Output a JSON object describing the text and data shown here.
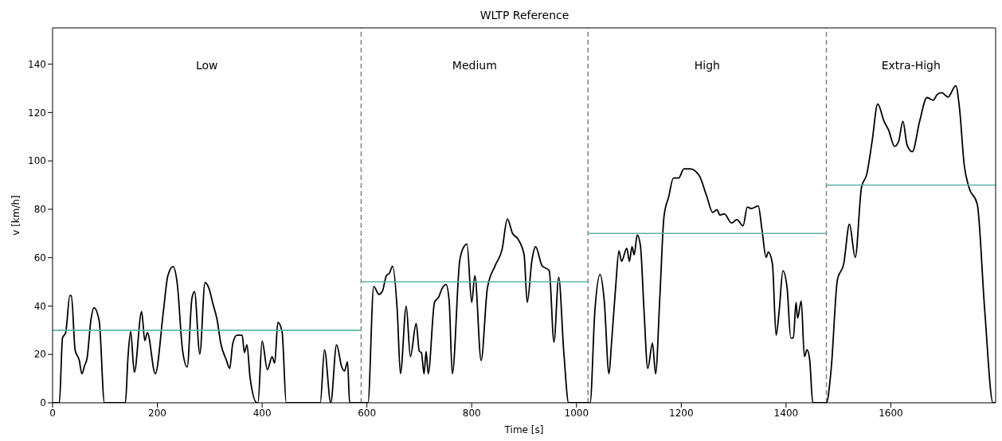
{
  "chart_data": {
    "type": "line",
    "title": "WLTP Reference",
    "xlabel": "Time [s]",
    "ylabel": "v [km/h]",
    "xlim": [
      0,
      1800
    ],
    "xticks": [
      0,
      200,
      400,
      600,
      800,
      1000,
      1200,
      1400,
      1600
    ],
    "ylim": [
      0,
      155
    ],
    "yticks": [
      0,
      20,
      40,
      60,
      80,
      100,
      120,
      140
    ],
    "marker": "none",
    "line_style": "solid",
    "series": [
      {
        "color": "#000000",
        "x": [
          0,
          13,
          19,
          25,
          33,
          36,
          43,
          51,
          56,
          61,
          66,
          73,
          79,
          89,
          99,
          139,
          144,
          149,
          156,
          170,
          176,
          181,
          196,
          212,
          220,
          230,
          238,
          248,
          257,
          266,
          271,
          281,
          291,
          299,
          306,
          314,
          321,
          332,
          338,
          344,
          352,
          362,
          366,
          371,
          377,
          390,
          392,
          400,
          410,
          419,
          424,
          430,
          438,
          446,
          511,
          519,
          531,
          542,
          552,
          557,
          563,
          567,
          587,
          602,
          613,
          623,
          630,
          637,
          643,
          649,
          658,
          664,
          675,
          683,
          694,
          700,
          704,
          709,
          713,
          717,
          729,
          737,
          743,
          751,
          757,
          763,
          777,
          785,
          791,
          800,
          806,
          818,
          830,
          845,
          858,
          868,
          878,
          888,
          900,
          906,
          915,
          922,
          934,
          948,
          957,
          966,
          976,
          985,
          1022,
          1026,
          1035,
          1045,
          1053,
          1062,
          1067,
          1075,
          1081,
          1086,
          1096,
          1101,
          1106,
          1110,
          1116,
          1122,
          1129,
          1136,
          1145,
          1151,
          1159,
          1167,
          1176,
          1185,
          1195,
          1205,
          1217,
          1234,
          1248,
          1260,
          1268,
          1274,
          1282,
          1296,
          1306,
          1318,
          1326,
          1334,
          1347,
          1354,
          1362,
          1366,
          1374,
          1381,
          1387,
          1394,
          1402,
          1409,
          1414,
          1419,
          1422,
          1429,
          1435,
          1440,
          1445,
          1451,
          1477,
          1486,
          1498,
          1510,
          1521,
          1532,
          1544,
          1554,
          1564,
          1575,
          1587,
          1596,
          1607,
          1615,
          1623,
          1631,
          1641,
          1655,
          1669,
          1681,
          1688,
          1697,
          1709,
          1724,
          1731,
          1740,
          1749,
          1765,
          1779,
          1795,
          1800
        ],
        "values": [
          0,
          0,
          26.8,
          29,
          44.3,
          44.3,
          21.9,
          17.5,
          12,
          15.3,
          18.6,
          33.9,
          39.3,
          33.9,
          0,
          0,
          19,
          29.5,
          12.6,
          37.7,
          25.7,
          29,
          12,
          38.8,
          52.5,
          56.3,
          49.2,
          21.9,
          14.8,
          43.2,
          45.9,
          20.2,
          49.7,
          47,
          41,
          34.4,
          24.6,
          17.5,
          14.2,
          24.6,
          27.9,
          27.9,
          20.8,
          24,
          10.4,
          0,
          0,
          25.5,
          13.7,
          19,
          16.4,
          33.3,
          29.5,
          0,
          0,
          21.9,
          0,
          24,
          14.8,
          13.1,
          17,
          0,
          0,
          0,
          48.1,
          44.8,
          46.4,
          52.5,
          53.6,
          56.5,
          37.7,
          12,
          39.9,
          19.1,
          32.8,
          21.3,
          20.8,
          12,
          21.3,
          12,
          41.5,
          43.7,
          47,
          48.9,
          42.1,
          12,
          58.5,
          64.5,
          65.6,
          41.5,
          52.5,
          17.5,
          47.5,
          56.8,
          63.4,
          76,
          70,
          67.8,
          61.2,
          41.5,
          59,
          64.5,
          56.8,
          54.6,
          25.1,
          51.9,
          20.2,
          0,
          0,
          0,
          37.7,
          53,
          42.1,
          12,
          25.1,
          48.6,
          62.8,
          58.5,
          63.9,
          58.5,
          64.5,
          61.2,
          69.4,
          65,
          37.7,
          14.2,
          24.6,
          12,
          43.2,
          77,
          85.2,
          92.9,
          92.9,
          96.7,
          96.7,
          94,
          85.8,
          78.7,
          79.8,
          77.6,
          78.1,
          74.3,
          75.7,
          73.2,
          80.9,
          80.3,
          81.4,
          71.6,
          60.1,
          62.3,
          57.4,
          27.9,
          38.3,
          54.6,
          47.5,
          26.8,
          26.8,
          41.5,
          35,
          42.1,
          19.1,
          21.9,
          18,
          0,
          0,
          13.7,
          50.8,
          57.4,
          73.8,
          60.1,
          89.1,
          94.5,
          107.7,
          123.5,
          116.4,
          112.6,
          106,
          108.2,
          116.4,
          106.6,
          103.8,
          116.4,
          126.2,
          125.1,
          127.3,
          128.2,
          126.4,
          131.1,
          121.9,
          98.4,
          89.1,
          82,
          38.8,
          0,
          0
        ]
      },
      {
        "color": "#5fb3a8",
        "x": [
          0,
          589
        ],
        "values": [
          30,
          30
        ]
      },
      {
        "color": "#5fb3a8",
        "x": [
          589,
          1022
        ],
        "values": [
          50,
          50
        ]
      },
      {
        "color": "#5fb3a8",
        "x": [
          1022,
          1477
        ],
        "values": [
          70,
          70
        ]
      },
      {
        "color": "#5fb3a8",
        "x": [
          1477,
          1800
        ],
        "values": [
          90,
          90
        ]
      }
    ],
    "ref_lines": [
      {
        "axis": "x",
        "value": 589,
        "color": "#808080",
        "line_style": "dashed"
      },
      {
        "axis": "x",
        "value": 1022,
        "color": "#808080",
        "line_style": "dashed"
      },
      {
        "axis": "x",
        "value": 1477,
        "color": "#808080",
        "line_style": "dashed"
      }
    ],
    "annotations": [
      "Low",
      "Medium",
      "High",
      "Extra-High"
    ]
  }
}
